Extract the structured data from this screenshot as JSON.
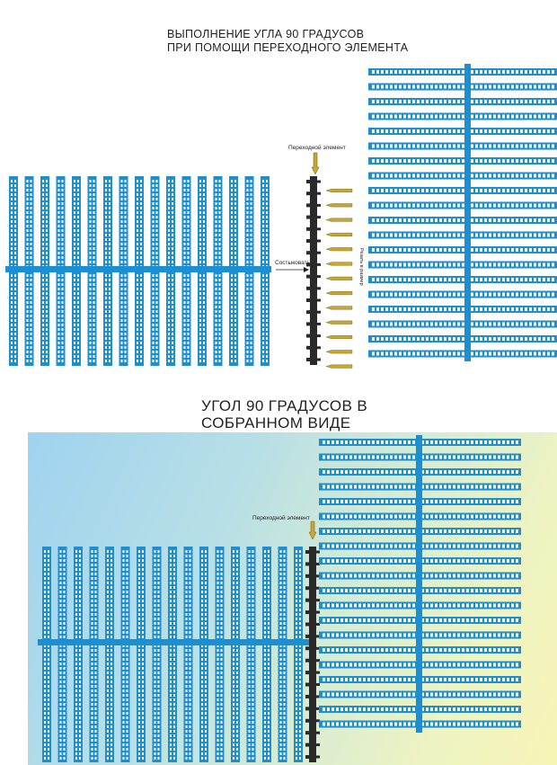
{
  "titles": {
    "top": [
      "ВЫПОЛНЕНИЕ УГЛА 90 ГРАДУСОВ",
      "ПРИ ПОМОЩИ ПЕРЕХОДНОГО ЭЛЕМЕНТА"
    ],
    "bottom": [
      "УГОЛ 90 ГРАДУСОВ В",
      "СОБРАННОМ ВИДЕ"
    ]
  },
  "labels": {
    "transition_top": "Переходной элемент",
    "connector": "Состыковать",
    "cut": "Резать в размер",
    "transition_bottom": "Переходной элемент"
  },
  "colors": {
    "grating_blue": "#1b8fd2",
    "slot_white": "#ffffff",
    "transition_dark": "#2a2a2a",
    "pin_gold": "#c8a632"
  }
}
